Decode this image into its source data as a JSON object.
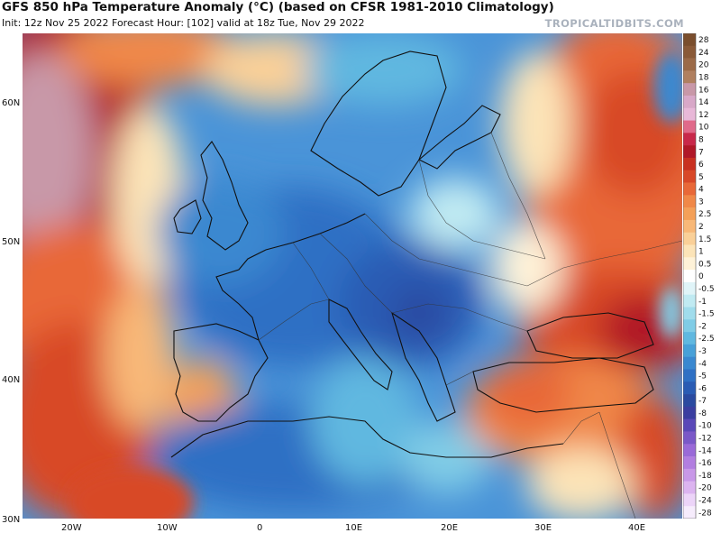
{
  "header": {
    "title": "GFS 850 hPa Temperature Anomaly (°C) (based on CFSR 1981-2010 Climatology)",
    "subtitle": "Init: 12z Nov 25 2022   Forecast Hour: [102]   valid at 18z Tue, Nov 29 2022",
    "brand": "TROPICALTIDBITS.COM"
  },
  "axes": {
    "lat_labels": [
      "60N",
      "50N",
      "40N",
      "30N"
    ],
    "lon_labels": [
      "20W",
      "10W",
      "0",
      "10E",
      "20E",
      "30E",
      "40E"
    ]
  },
  "colorbar": {
    "levels": [
      "28",
      "24",
      "20",
      "18",
      "16",
      "14",
      "12",
      "10",
      "8",
      "7",
      "6",
      "5",
      "4",
      "3",
      "2.5",
      "2",
      "1.5",
      "1",
      "0.5",
      "0",
      "-0.5",
      "-1",
      "-1.5",
      "-2",
      "-2.5",
      "-3",
      "-4",
      "-5",
      "-6",
      "-7",
      "-8",
      "-10",
      "-12",
      "-14",
      "-16",
      "-18",
      "-20",
      "-24",
      "-28"
    ],
    "colors": [
      "#7a4e2d",
      "#8a5a38",
      "#9b6a48",
      "#b08060",
      "#c898a8",
      "#d8a8c8",
      "#e8b8d8",
      "#e06a8a",
      "#c8284a",
      "#b01828",
      "#c83020",
      "#d84828",
      "#e86838",
      "#f08848",
      "#f4a058",
      "#f8b878",
      "#fad098",
      "#fce4b8",
      "#fef2d8",
      "#ffffff",
      "#e0f4f8",
      "#c0eaf2",
      "#a0dcec",
      "#80cce6",
      "#60b8e0",
      "#48a0d8",
      "#3a88d0",
      "#2f70c4",
      "#2a5cb4",
      "#2a4aa0",
      "#3a3ea0",
      "#5a48b8",
      "#7a58c8",
      "#9a6ad8",
      "#b27ee0",
      "#c898e8",
      "#dcb4f0",
      "#ecd4f8",
      "#f6ecfc"
    ]
  },
  "map": {
    "field": "850 hPa temperature anomaly",
    "colors": {
      "warm_strong": "#b01828",
      "warm": "#e86838",
      "warm_light": "#f8b878",
      "neutral": "#fef2d8",
      "cold_light": "#80cce6",
      "cold": "#2f70c4",
      "cold_strong": "#2a4aa0",
      "coast": "#111111",
      "border": "#333333"
    }
  }
}
